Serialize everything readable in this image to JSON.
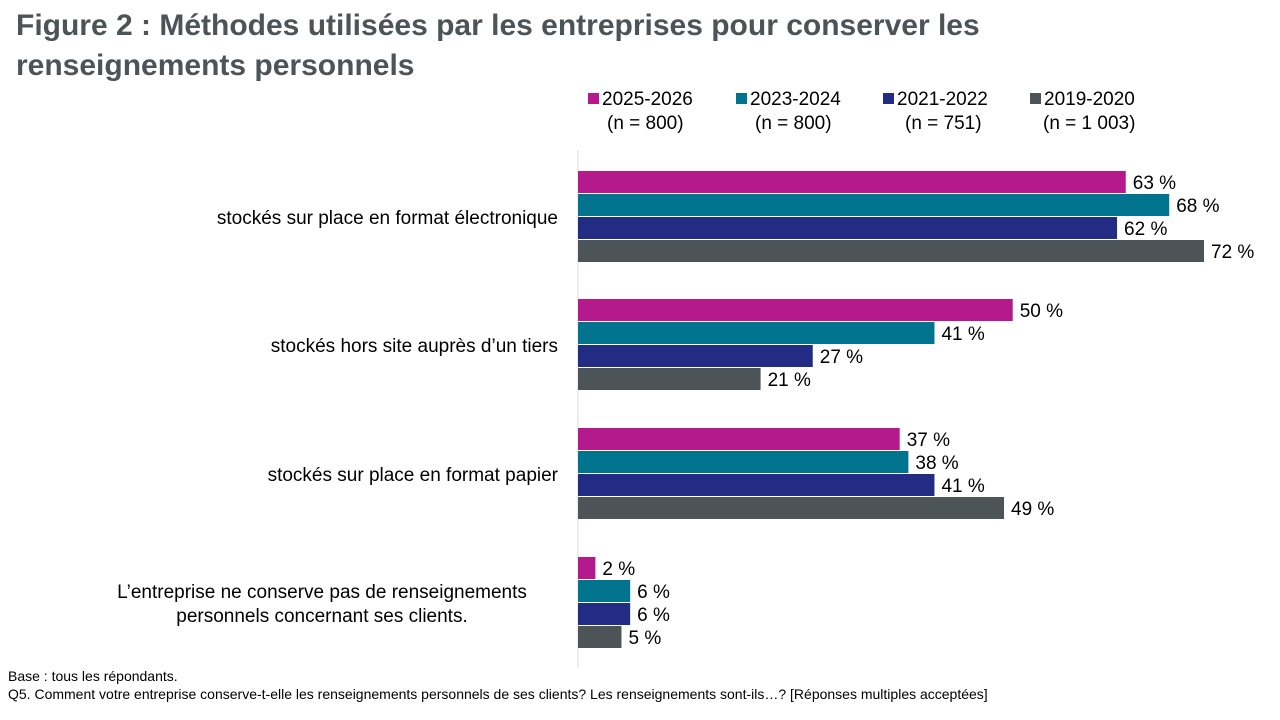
{
  "title": "Figure 2 : Méthodes utilisées par les entreprises pour conserver les renseignements personnels",
  "footer": {
    "base": "Base : tous les répondants.",
    "question": "Q5. Comment votre entreprise conserve-t-elle les renseignements personnels de ses clients? Les renseignements sont-ils…? [Réponses multiples acceptées]"
  },
  "chart_data": {
    "type": "bar",
    "orientation": "horizontal",
    "title": "Figure 2 : Méthodes utilisées par les entreprises pour conserver les renseignements personnels",
    "categories": [
      [
        "stockés sur place en format électronique"
      ],
      [
        "stockés hors site auprès d’un tiers"
      ],
      [
        "stockés sur place en format papier"
      ],
      [
        "L’entreprise ne conserve pas de renseignements",
        "personnels concernant ses clients."
      ]
    ],
    "series": [
      {
        "name": "2025-2026",
        "n": "(n = 800)",
        "color": "#b5198b",
        "values": [
          63,
          50,
          37,
          2
        ]
      },
      {
        "name": "2023-2024",
        "n": "(n = 800)",
        "color": "#00738f",
        "values": [
          68,
          41,
          38,
          6
        ]
      },
      {
        "name": "2021-2022",
        "n": "(n = 751)",
        "color": "#222c84",
        "values": [
          62,
          27,
          41,
          6
        ]
      },
      {
        "name": "2019-2020",
        "n": "(n = 1 003)",
        "color": "#4d5458",
        "values": [
          72,
          21,
          49,
          5
        ]
      }
    ],
    "value_suffix": " %",
    "xlim": [
      0,
      72
    ],
    "grid": false,
    "legend": "top"
  }
}
